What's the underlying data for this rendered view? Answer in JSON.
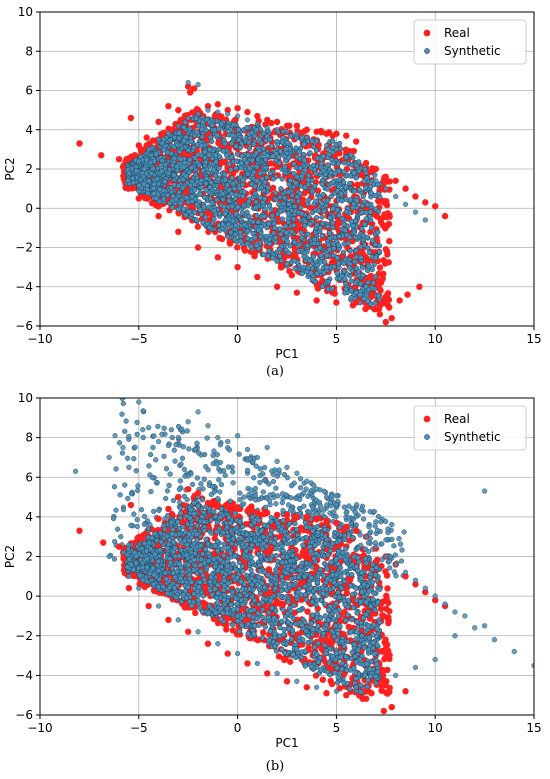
{
  "chart_data": [
    {
      "type": "scatter",
      "caption": "(a)",
      "xlabel": "PC1",
      "ylabel": "PC2",
      "xlim": [
        -10,
        15
      ],
      "ylim": [
        -6,
        10
      ],
      "xticks": [
        -10,
        -5,
        0,
        5,
        10,
        15
      ],
      "yticks": [
        -6,
        -4,
        -2,
        0,
        2,
        4,
        6,
        8,
        10
      ],
      "grid": true,
      "legend_position": "top-right",
      "series": [
        {
          "name": "Real",
          "color": "#ff2020",
          "marker": "circle",
          "x": [
            -8.0,
            -6.9,
            -6.0,
            -5.4,
            -5.0,
            -4.6,
            -4.0,
            -3.5,
            -3.0,
            -2.5,
            -2.4,
            -2.2,
            -2.0,
            -1.5,
            -1.0,
            -0.5,
            0.0,
            0.5,
            1.0,
            1.5,
            2.0,
            2.5,
            3.0,
            3.5,
            4.0,
            4.5,
            5.0,
            5.5,
            6.0,
            6.5,
            7.0,
            7.5,
            8.0,
            8.5,
            9.0,
            9.5,
            10.0,
            10.5,
            7.8,
            7.5,
            7.2,
            8.2,
            8.6,
            9.2,
            6.8,
            6.0,
            5.0,
            4.0,
            3.0,
            2.0,
            1.0,
            0.0,
            -1.0,
            -2.0,
            -3.0,
            -4.0,
            -5.0
          ],
          "y": [
            3.3,
            2.7,
            2.5,
            4.6,
            3.2,
            3.6,
            4.4,
            5.2,
            5.0,
            6.2,
            5.9,
            6.1,
            5.0,
            5.2,
            5.3,
            5.0,
            5.1,
            4.9,
            4.7,
            4.5,
            4.4,
            4.2,
            4.2,
            4.0,
            3.9,
            3.8,
            3.8,
            3.7,
            3.4,
            2.3,
            2.0,
            1.6,
            1.4,
            1.0,
            0.6,
            0.3,
            0.1,
            -0.4,
            -5.6,
            -5.8,
            -5.4,
            -4.7,
            -4.4,
            -4.0,
            -4.5,
            -4.8,
            -4.8,
            -4.7,
            -4.3,
            -4.0,
            -3.5,
            -3.0,
            -2.5,
            -2.0,
            -1.2,
            -0.4,
            0.5
          ]
        },
        {
          "name": "Synthetic",
          "color": "#4a8fb8",
          "marker": "circle",
          "x": [
            -5.5,
            -5.0,
            -4.5,
            -4.0,
            -3.5,
            -3.0,
            -2.5,
            -2.0,
            -1.5,
            -1.0,
            -0.5,
            0.0,
            0.5,
            1.0,
            1.5,
            2.0,
            2.5,
            3.0,
            3.5,
            4.0,
            4.5,
            5.0,
            5.5,
            6.0,
            6.5,
            7.0,
            7.5,
            8.0,
            8.5,
            9.0,
            9.5,
            -2.5,
            -2.0
          ],
          "y": [
            1.8,
            2.4,
            3.0,
            3.5,
            3.8,
            4.2,
            4.6,
            4.8,
            5.0,
            4.9,
            4.8,
            4.7,
            4.5,
            4.3,
            4.1,
            4.0,
            3.9,
            3.8,
            3.6,
            3.4,
            3.2,
            3.0,
            2.6,
            2.2,
            1.8,
            1.4,
            1.0,
            0.6,
            0.2,
            -0.2,
            -0.6,
            6.4,
            6.3
          ]
        }
      ]
    },
    {
      "type": "scatter",
      "caption": "(b)",
      "xlabel": "PC1",
      "ylabel": "PC2",
      "xlim": [
        -10,
        15
      ],
      "ylim": [
        -6,
        10
      ],
      "xticks": [
        -10,
        -5,
        0,
        5,
        10,
        15
      ],
      "yticks": [
        -6,
        -4,
        -2,
        0,
        2,
        4,
        6,
        8,
        10
      ],
      "grid": true,
      "legend_position": "top-right",
      "series": [
        {
          "name": "Real",
          "color": "#ff2020",
          "marker": "circle",
          "x": [
            -8.0,
            -6.8,
            -6.0,
            -5.4,
            -4.8,
            -4.0,
            -3.5,
            -3.0,
            -2.5,
            -2.0,
            -1.5,
            -1.0,
            -0.5,
            0.0,
            0.5,
            1.0,
            1.5,
            2.0,
            2.5,
            3.0,
            3.5,
            4.0,
            4.5,
            5.0,
            5.5,
            6.0,
            6.5,
            7.0,
            7.5,
            8.0,
            8.5,
            9.0,
            9.5,
            10.0,
            10.5,
            7.8,
            7.4,
            8.5,
            6.5,
            5.5,
            4.5,
            3.5,
            2.5,
            1.5,
            0.5,
            -0.5,
            -1.5,
            -2.5,
            -3.5,
            -4.5,
            -5.5
          ],
          "y": [
            3.3,
            2.7,
            2.5,
            4.6,
            2.9,
            3.9,
            4.4,
            5.0,
            5.4,
            5.2,
            4.7,
            4.6,
            4.5,
            4.4,
            4.3,
            4.2,
            4.2,
            4.1,
            4.1,
            4.0,
            4.0,
            3.9,
            3.8,
            3.7,
            3.5,
            3.3,
            3.0,
            2.4,
            2.0,
            1.6,
            1.0,
            0.6,
            0.2,
            -0.2,
            -0.5,
            -5.6,
            -5.8,
            -4.8,
            -4.8,
            -5.0,
            -4.9,
            -4.6,
            -4.3,
            -3.9,
            -3.4,
            -2.9,
            -2.4,
            -1.8,
            -1.2,
            -0.5,
            0.4
          ]
        },
        {
          "name": "Synthetic",
          "color": "#4a8fb8",
          "marker": "circle",
          "x": [
            -8.2,
            -6.5,
            -6.2,
            -5.8,
            -5.5,
            -5.0,
            -4.8,
            -4.5,
            -4.0,
            -3.5,
            -3.0,
            -2.5,
            -2.0,
            -1.5,
            -1.0,
            -0.5,
            0.0,
            0.5,
            1.0,
            1.5,
            2.0,
            2.5,
            3.0,
            3.5,
            4.0,
            4.5,
            5.0,
            5.5,
            6.0,
            6.5,
            7.0,
            7.5,
            8.0,
            8.5,
            9.0,
            9.5,
            10.0,
            10.5,
            11.0,
            11.5,
            12.0,
            12.5,
            13.0,
            14.0,
            15.0,
            12.5,
            11.0,
            10.0,
            9.0,
            8.0,
            7.0,
            6.0,
            5.0,
            4.0,
            3.0,
            2.0,
            1.0,
            0.0,
            -1.0,
            -2.0,
            -3.0,
            -4.0,
            -5.0,
            -5.5,
            -6.5
          ],
          "y": [
            6.3,
            7.0,
            8.1,
            7.5,
            6.5,
            9.8,
            8.4,
            8.5,
            7.8,
            7.6,
            8.0,
            8.8,
            9.3,
            8.6,
            8.0,
            7.8,
            8.1,
            7.4,
            7.0,
            7.5,
            6.8,
            6.5,
            6.2,
            5.8,
            5.4,
            5.0,
            4.6,
            4.2,
            3.6,
            3.0,
            2.5,
            2.0,
            1.6,
            1.2,
            0.8,
            0.4,
            0.0,
            -0.4,
            -0.8,
            -1.0,
            -1.6,
            -1.5,
            -2.2,
            -2.8,
            -3.5,
            5.3,
            -2.0,
            -3.2,
            -3.6,
            -4.0,
            -4.4,
            -4.6,
            -4.8,
            -4.6,
            -4.3,
            -3.9,
            -3.4,
            -2.9,
            -2.4,
            -1.8,
            -1.2,
            -0.5,
            0.4,
            1.0,
            2.0
          ]
        }
      ]
    }
  ]
}
